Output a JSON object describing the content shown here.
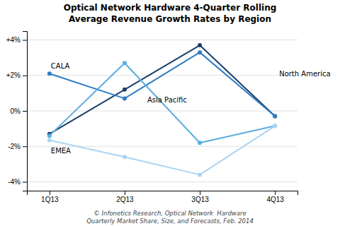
{
  "chart_data": {
    "type": "line",
    "title": "Optical Network Hardware 4-Quarter Rolling\nAverage Revenue Growth Rates by Region",
    "footnote": "© Infonetics Research, Optical Network  Hardware\nQuarterly Market Share, Size, and Forecasts, Feb. 2014",
    "categories": [
      "1Q13",
      "2Q13",
      "3Q13",
      "4Q13"
    ],
    "series": [
      {
        "name": "North America",
        "color": "#1c3d6b",
        "marker": "circle",
        "values": [
          -1.3,
          1.2,
          3.7,
          -0.3
        ]
      },
      {
        "name": "CALA",
        "color": "#2e7dc5",
        "marker": "circle",
        "values": [
          2.1,
          0.7,
          3.3,
          -0.3
        ]
      },
      {
        "name": "Asia Pacific",
        "color": "#5aaee0",
        "marker": "circle",
        "values": [
          -1.4,
          2.7,
          -1.8,
          -0.85
        ]
      },
      {
        "name": "EMEA",
        "color": "#aad5f2",
        "marker": "circle",
        "values": [
          -1.65,
          -2.6,
          -3.6,
          -0.85
        ]
      }
    ],
    "ylim": [
      -4.5,
      4.5
    ],
    "yticks": [
      {
        "value": -4,
        "label": "-4%"
      },
      {
        "value": -2,
        "label": "-2%"
      },
      {
        "value": 0,
        "label": "0%"
      },
      {
        "value": 2,
        "label": "+2%"
      },
      {
        "value": 4,
        "label": "+4%"
      }
    ],
    "grid": true
  }
}
